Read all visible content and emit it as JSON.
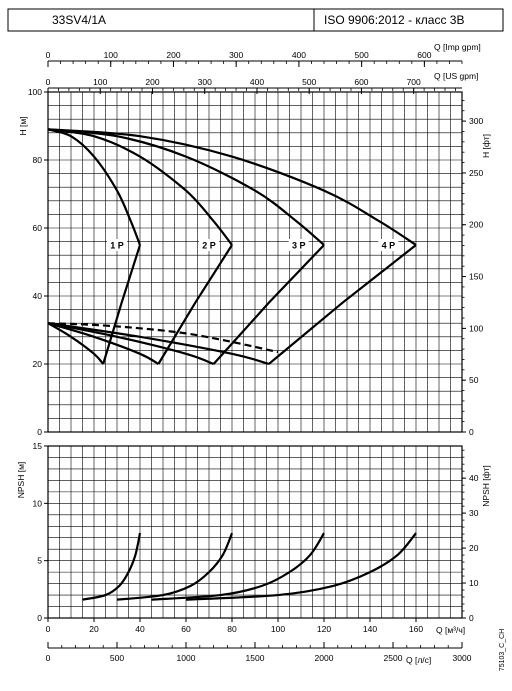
{
  "header": {
    "model": "33SV4/1A",
    "standard": "ISO 9906:2012 - класс 3B"
  },
  "side_code": "75103_C_CH",
  "chart_data": [
    {
      "type": "line",
      "name": "H curves",
      "xlim": [
        0,
        180
      ],
      "ylim": [
        0,
        100
      ],
      "ylabel": "H [м]",
      "yticks": [
        0,
        20,
        40,
        60,
        80,
        100
      ],
      "ylabel_right": "H [фт]",
      "yticks_right": [
        0,
        50,
        100,
        150,
        200,
        250,
        300
      ],
      "ylim_right_ft": [
        0,
        328.1
      ],
      "top_axis_1": {
        "label": "Q [Imp gpm]",
        "ticks": [
          0,
          100,
          200,
          300,
          400,
          500,
          600
        ],
        "max": 660
      },
      "top_axis_2": {
        "label": "Q [US gpm]",
        "ticks": [
          0,
          100,
          200,
          300,
          400,
          500,
          600,
          700
        ],
        "max": 792.5
      },
      "grid": true,
      "series": [
        {
          "name": "1 P",
          "x": [
            0,
            10,
            20,
            30,
            36,
            40
          ],
          "y": [
            89,
            87,
            81,
            71,
            62,
            55
          ]
        },
        {
          "name": "2 P",
          "x": [
            0,
            20,
            40,
            60,
            72,
            80
          ],
          "y": [
            89,
            87,
            81,
            71,
            62,
            55
          ]
        },
        {
          "name": "3 P",
          "x": [
            0,
            30,
            60,
            90,
            108,
            120
          ],
          "y": [
            89,
            87,
            81,
            71,
            62,
            55
          ]
        },
        {
          "name": "4 P",
          "x": [
            0,
            40,
            80,
            120,
            144,
            160
          ],
          "y": [
            89,
            87,
            81,
            71,
            62,
            55
          ]
        }
      ],
      "power_curves": [
        {
          "x": [
            0,
            10,
            20,
            24,
            32,
            40
          ],
          "y": [
            32,
            28,
            23,
            20,
            38,
            55
          ]
        },
        {
          "x": [
            0,
            20,
            40,
            48,
            64,
            80
          ],
          "y": [
            32,
            28,
            23,
            20,
            38,
            55
          ]
        },
        {
          "x": [
            0,
            30,
            60,
            72,
            96,
            120
          ],
          "y": [
            32,
            28,
            23,
            20,
            38,
            55
          ]
        },
        {
          "x": [
            0,
            40,
            80,
            96,
            128,
            160
          ],
          "y": [
            32,
            28,
            23,
            20,
            38,
            55
          ]
        }
      ],
      "efficiency_dashed": {
        "x": [
          0,
          20,
          40,
          60,
          80,
          100
        ],
        "y": [
          32,
          31.5,
          30.5,
          29,
          26.5,
          23.5
        ]
      },
      "labels": [
        {
          "text": "1 P",
          "x": 30,
          "y": 55
        },
        {
          "text": "2 P",
          "x": 70,
          "y": 55
        },
        {
          "text": "3 P",
          "x": 109,
          "y": 55
        },
        {
          "text": "4 P",
          "x": 148,
          "y": 55
        }
      ]
    },
    {
      "type": "line",
      "name": "NPSH curves",
      "xlim": [
        0,
        180
      ],
      "ylim": [
        0,
        15
      ],
      "ylabel": "NPSH [м]",
      "yticks": [
        0,
        5,
        10,
        15
      ],
      "ylabel_right": "NPSH [фт]",
      "yticks_right": [
        0,
        10,
        20,
        30,
        40
      ],
      "ylim_right_ft": [
        0,
        49.2
      ],
      "xlabel": "Q [м³/ч]",
      "xticks": [
        0,
        20,
        40,
        60,
        80,
        100,
        120,
        140,
        160
      ],
      "xlabel_2": "Q [л/с]",
      "xticks_2": [
        0,
        500,
        1000,
        1500,
        2000,
        2500,
        3000
      ],
      "xlim_2": [
        0,
        3000
      ],
      "grid": true,
      "series": [
        {
          "name": "1 P",
          "x": [
            15,
            25,
            31,
            35,
            38,
            40
          ],
          "y": [
            1.6,
            2.0,
            2.8,
            4.0,
            5.5,
            7.4
          ]
        },
        {
          "name": "2 P",
          "x": [
            30,
            50,
            62,
            70,
            76,
            80
          ],
          "y": [
            1.6,
            2.0,
            2.8,
            4.0,
            5.5,
            7.4
          ]
        },
        {
          "name": "3 P",
          "x": [
            45,
            75,
            93,
            105,
            114,
            120
          ],
          "y": [
            1.6,
            2.0,
            2.8,
            4.0,
            5.5,
            7.4
          ]
        },
        {
          "name": "4 P",
          "x": [
            60,
            100,
            124,
            140,
            152,
            160
          ],
          "y": [
            1.6,
            2.0,
            2.8,
            4.0,
            5.5,
            7.4
          ]
        }
      ]
    }
  ]
}
